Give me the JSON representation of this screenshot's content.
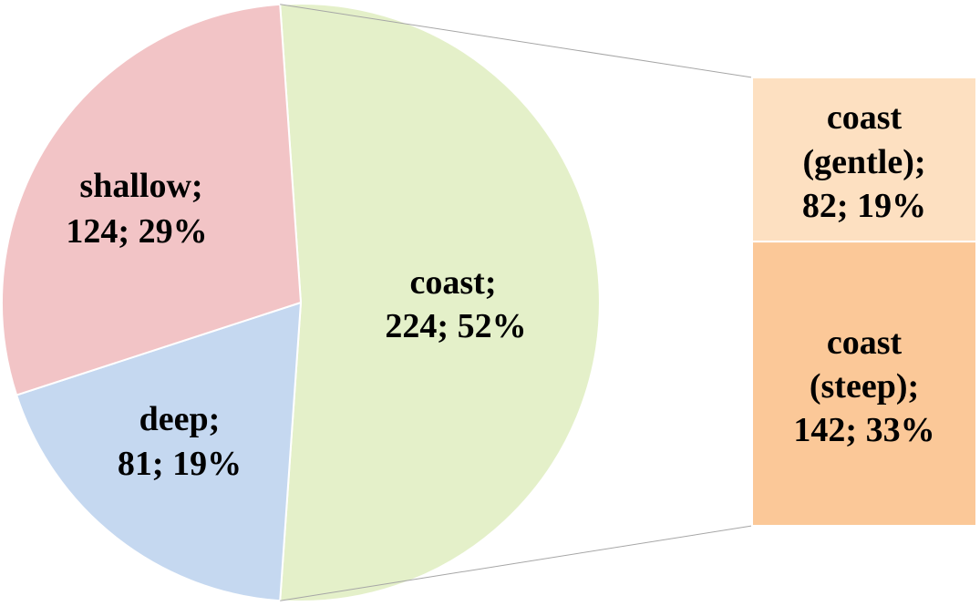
{
  "chart_data": {
    "type": "pie",
    "variant": "bar-of-pie",
    "pie": {
      "slices": [
        {
          "name": "shallow",
          "value": 124,
          "percent": "29%",
          "color": "#f2c4c6",
          "label_line1": "shallow;",
          "label_line2": "124; 29%"
        },
        {
          "name": "deep",
          "value": 81,
          "percent": "19%",
          "color": "#c5d8f0",
          "label_line1": "deep;",
          "label_line2": "81; 19%"
        },
        {
          "name": "coast",
          "value": 224,
          "percent": "52%",
          "color": "#e4f0c9",
          "label_line1": "coast;",
          "label_line2": "224; 52%"
        }
      ]
    },
    "bar": {
      "segments": [
        {
          "name": "coast (gentle)",
          "value": 82,
          "percent": "19%",
          "color": "#fde0c1",
          "label_line1": "coast",
          "label_line2": "(gentle);",
          "label_line3": "82; 19%"
        },
        {
          "name": "coast (steep)",
          "value": 142,
          "percent": "33%",
          "color": "#fbc898",
          "label_line1": "coast",
          "label_line2": "(steep);",
          "label_line3": "142; 33%"
        }
      ]
    },
    "connector_color": "#a6a6a6"
  }
}
